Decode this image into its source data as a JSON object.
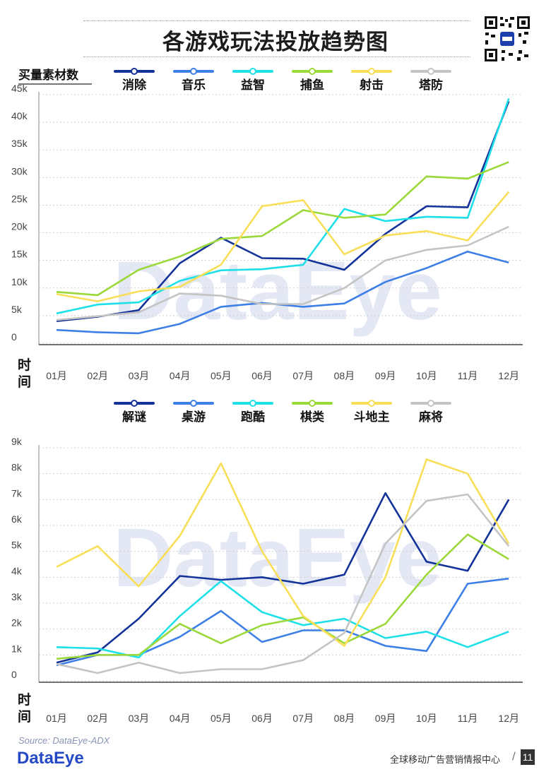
{
  "title": "各游戏玩法投放趋势图",
  "unit_label": "买量素材数",
  "time_label": "时间",
  "watermark": "DataEye",
  "source": "Source: DataEye-ADX",
  "brand": "DataEye",
  "footer": "全球移动广告营销情报中心",
  "page_number": "11",
  "chart_data": [
    {
      "type": "line",
      "ylabel": "买量素材数",
      "xlabel": "时间",
      "categories": [
        "01月",
        "02月",
        "03月",
        "04月",
        "05月",
        "06月",
        "07月",
        "08月",
        "09月",
        "10月",
        "11月",
        "12月"
      ],
      "y_ticks": [
        "0",
        "5k",
        "10k",
        "15k",
        "20k",
        "25k",
        "30k",
        "35k",
        "40k",
        "45k"
      ],
      "ylim": [
        0,
        45000
      ],
      "series": [
        {
          "name": "消除",
          "color": "#14339a",
          "values": [
            4000,
            4800,
            6000,
            14500,
            19100,
            15400,
            15300,
            13300,
            19800,
            24800,
            24600,
            43800
          ]
        },
        {
          "name": "音乐",
          "color": "#3d7fe6",
          "values": [
            2400,
            2000,
            1800,
            3500,
            6600,
            7300,
            6600,
            7200,
            11100,
            13600,
            16600,
            14600
          ]
        },
        {
          "name": "益智",
          "color": "#1ee0e8",
          "values": [
            5400,
            7000,
            7400,
            11300,
            13200,
            13400,
            14200,
            24300,
            22100,
            22900,
            22700,
            44300
          ]
        },
        {
          "name": "捕鱼",
          "color": "#9bd83a",
          "values": [
            9300,
            8700,
            13300,
            15700,
            18900,
            19400,
            24100,
            22700,
            23300,
            30200,
            29800,
            32800
          ]
        },
        {
          "name": "射击",
          "color": "#f9df58",
          "values": [
            8900,
            7600,
            9400,
            10200,
            14200,
            24800,
            25900,
            16100,
            19500,
            20300,
            18600,
            27400
          ]
        },
        {
          "name": "塔防",
          "color": "#c4c4c4",
          "values": [
            4200,
            4900,
            5600,
            9000,
            8600,
            7100,
            7100,
            10000,
            15000,
            16900,
            17700,
            21100
          ]
        }
      ]
    },
    {
      "type": "line",
      "xlabel": "时间",
      "categories": [
        "01月",
        "02月",
        "03月",
        "04月",
        "05月",
        "06月",
        "07月",
        "08月",
        "09月",
        "10月",
        "11月",
        "12月"
      ],
      "y_ticks": [
        "0",
        "1k",
        "2k",
        "3k",
        "4k",
        "5k",
        "6k",
        "7k",
        "8k",
        "9k"
      ],
      "ylim": [
        0,
        9000
      ],
      "series": [
        {
          "name": "解谜",
          "color": "#14339a",
          "values": [
            700,
            1100,
            2400,
            4050,
            3900,
            4000,
            3750,
            4100,
            7250,
            4600,
            4250,
            7000
          ]
        },
        {
          "name": "桌游",
          "color": "#3d7fe6",
          "values": [
            600,
            1000,
            1000,
            1700,
            2700,
            1500,
            1950,
            1950,
            1350,
            1150,
            3750,
            3950
          ]
        },
        {
          "name": "跑酷",
          "color": "#1ee0e8",
          "values": [
            1300,
            1250,
            900,
            2500,
            3850,
            2650,
            2150,
            2400,
            1650,
            1900,
            1300,
            1900
          ]
        },
        {
          "name": "棋类",
          "color": "#9bd83a",
          "values": [
            850,
            1000,
            1000,
            2200,
            1450,
            2150,
            2450,
            1450,
            2200,
            4100,
            5650,
            4700
          ]
        },
        {
          "name": "斗地主",
          "color": "#f9df58",
          "values": [
            4400,
            5200,
            3650,
            5600,
            8400,
            5000,
            2500,
            1350,
            4000,
            8550,
            8000,
            5300
          ]
        },
        {
          "name": "麻将",
          "color": "#c4c4c4",
          "values": [
            650,
            300,
            700,
            300,
            450,
            450,
            800,
            1850,
            5300,
            6950,
            7200,
            5200
          ]
        }
      ]
    }
  ]
}
